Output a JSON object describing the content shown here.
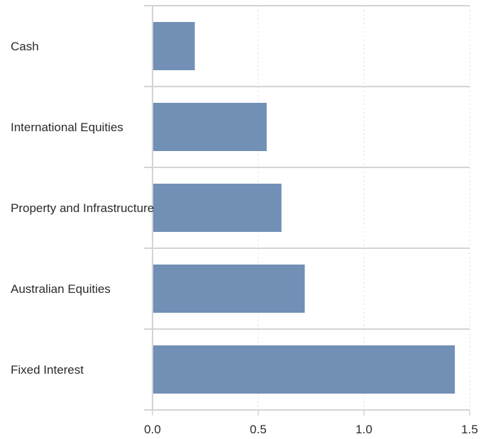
{
  "chart_data": {
    "type": "bar",
    "orientation": "horizontal",
    "categories": [
      "Cash",
      "International Equities",
      "Property and Infrastructure",
      "Australian Equities",
      "Fixed Interest"
    ],
    "values": [
      0.2,
      0.54,
      0.61,
      0.72,
      1.43
    ],
    "xticks": [
      "0.0",
      "0.5",
      "1.0",
      "1.5"
    ],
    "xlim": [
      0,
      1.5
    ],
    "title": "",
    "xlabel": "",
    "ylabel": "",
    "grid": "vertical dotted",
    "legend": "none",
    "colors": {
      "bar": "#7290b6",
      "axis": "#d4d4d4",
      "grid": "#dddddd",
      "text": "#2b2b2b"
    }
  }
}
